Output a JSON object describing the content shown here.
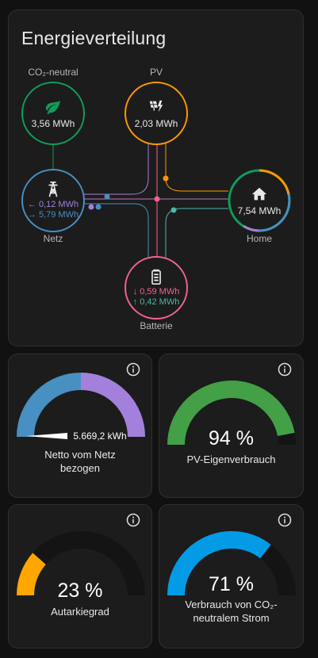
{
  "distribution": {
    "title": "Energieverteilung",
    "nodes": {
      "co2": {
        "label": "CO₂-neutral",
        "value": "3,56 MWh",
        "color": "#0f9d58"
      },
      "pv": {
        "label": "PV",
        "value": "2,03 MWh",
        "color": "#ff9800"
      },
      "grid": {
        "label": "Netz",
        "import": "0,12 MWh",
        "export": "5,79 MWh",
        "color": "#488fc2",
        "import_color": "#a280db"
      },
      "home": {
        "label": "Home",
        "value": "7,54 MWh"
      },
      "battery": {
        "label": "Batterie",
        "out": "0,59 MWh",
        "in": "0,42 MWh",
        "color": "#f06292",
        "in_color": "#4db6ac"
      }
    }
  },
  "gauges": [
    {
      "value_text": "5.669,2 kWh",
      "name_line1": "Netto vom Netz",
      "name_line2": "bezogen",
      "fraction": 0.5,
      "color_a": "#488fc2",
      "color_b": "#a280db"
    },
    {
      "value_text": "94 %",
      "name_line1": "PV-Eigenverbrauch",
      "name_line2": "",
      "fraction": 0.94,
      "color": "#43a047"
    },
    {
      "value_text": "23 %",
      "name_line1": "Autarkiegrad",
      "name_line2": "",
      "fraction": 0.23,
      "color": "#ffa600"
    },
    {
      "value_text": "71 %",
      "name_line1": "Verbrauch von CO₂-",
      "name_line2": "neutralem Strom",
      "fraction": 0.71,
      "color": "#039be5"
    }
  ],
  "icons": {
    "leaf": "leaf-icon",
    "pv": "solar-power-icon",
    "grid": "transmission-tower-icon",
    "home": "home-icon",
    "battery": "battery-icon",
    "info": "info-icon"
  }
}
